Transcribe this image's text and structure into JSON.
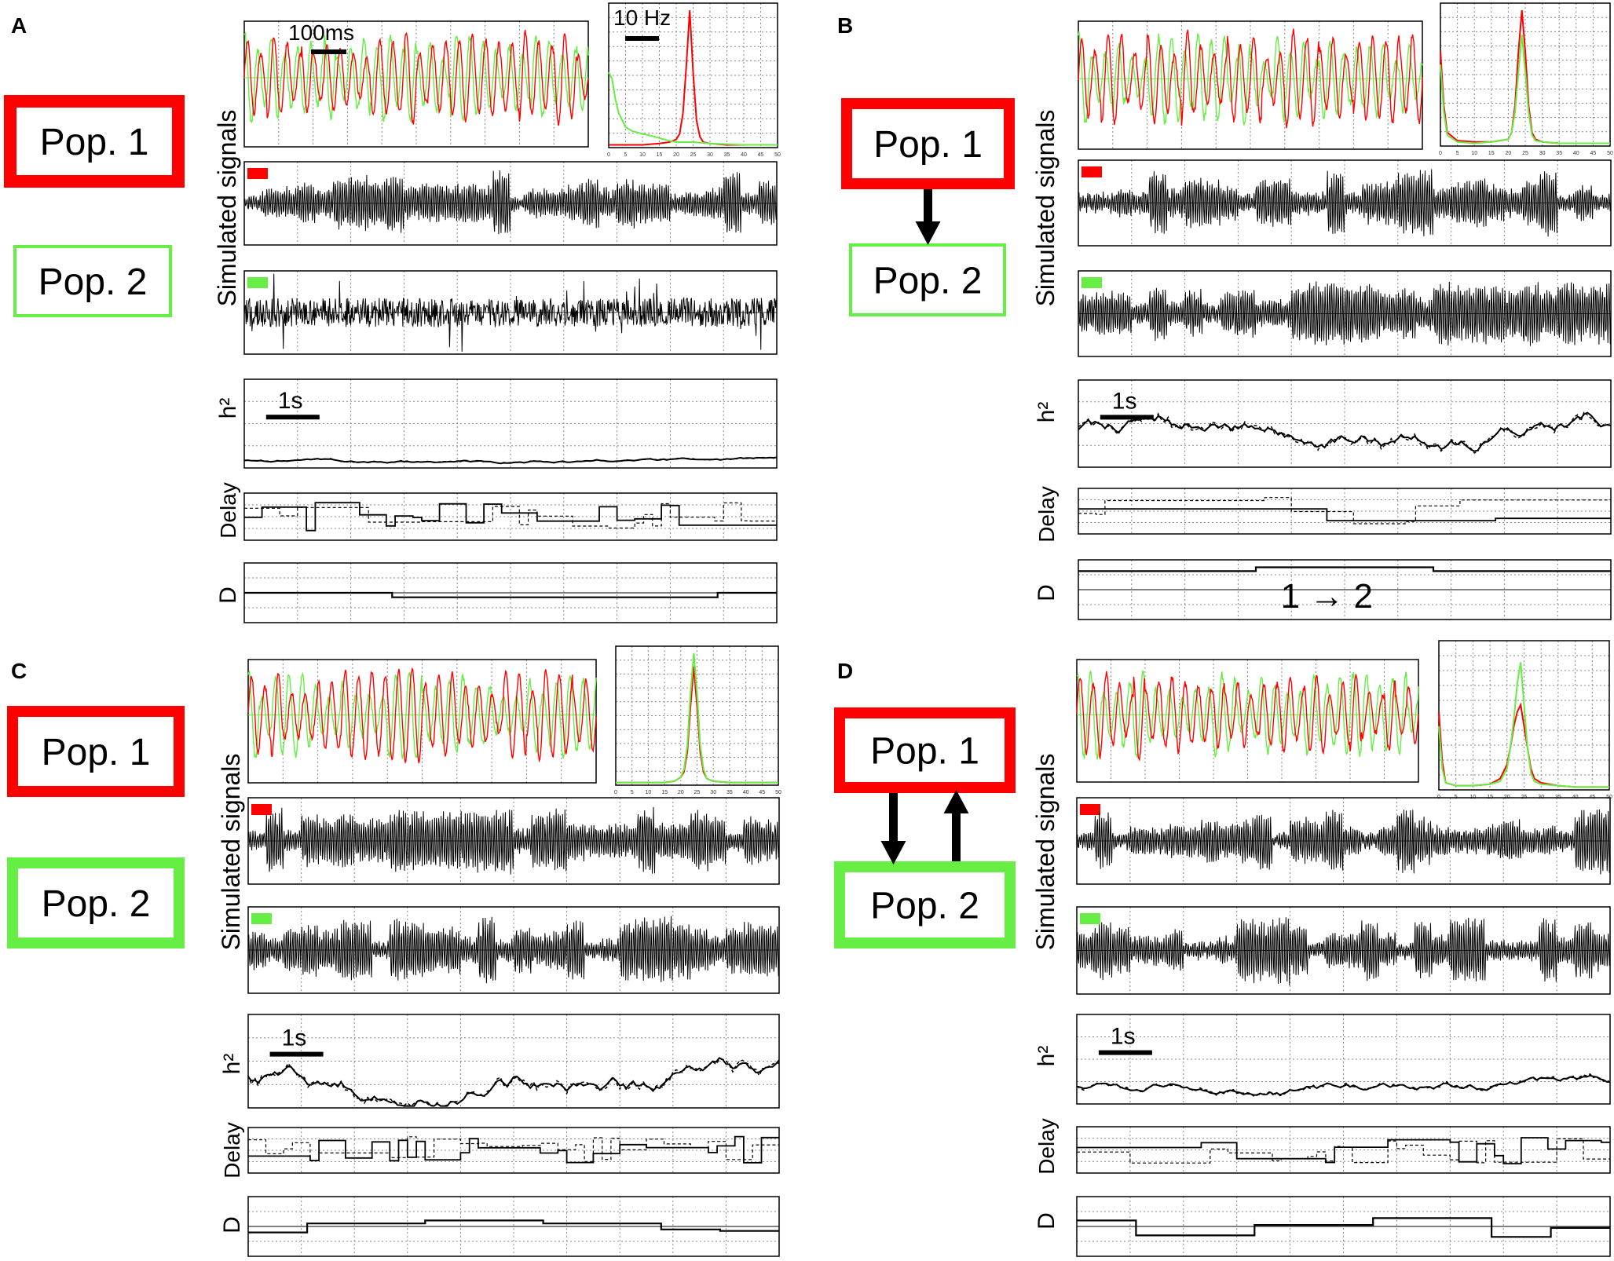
{
  "figure": {
    "panels": [
      {
        "letter": "A",
        "pop1_label": "Pop. 1",
        "pop2_label": "Pop. 2",
        "connection": "none",
        "direction_label": "",
        "ylabel_signals": "Simulated signals",
        "ylabel_h2": "h²",
        "ylabel_delay": "Delay",
        "ylabel_d": "D",
        "time_scale_label": "100ms",
        "freq_scale_label": "10 Hz",
        "seconds_scale_label": "1s"
      },
      {
        "letter": "B",
        "pop1_label": "Pop. 1",
        "pop2_label": "Pop. 2",
        "connection": "1to2",
        "direction_label": "1 → 2",
        "ylabel_signals": "Simulated signals",
        "ylabel_h2": "h²",
        "ylabel_delay": "Delay",
        "ylabel_d": "D",
        "time_scale_label": "",
        "freq_scale_label": "",
        "seconds_scale_label": "1s"
      },
      {
        "letter": "C",
        "pop1_label": "Pop. 1",
        "pop2_label": "Pop. 2",
        "connection": "none",
        "direction_label": "",
        "ylabel_signals": "Simulated signals",
        "ylabel_h2": "h²",
        "ylabel_delay": "Delay",
        "ylabel_d": "D",
        "time_scale_label": "",
        "freq_scale_label": "",
        "seconds_scale_label": "1s"
      },
      {
        "letter": "D",
        "pop1_label": "Pop. 1",
        "pop2_label": "Pop. 2",
        "connection": "bidirectional",
        "direction_label": "",
        "ylabel_signals": "Simulated signals",
        "ylabel_h2": "h²",
        "ylabel_delay": "Delay",
        "ylabel_d": "D",
        "time_scale_label": "",
        "freq_scale_label": "",
        "seconds_scale_label": "1s"
      }
    ],
    "colors": {
      "pop1": "#ff0000",
      "pop2": "#66ee44",
      "trace": "#000000",
      "grid": "#888888"
    }
  },
  "chart_data": [
    {
      "panel": "A",
      "type": "line",
      "subplot": "spectrum",
      "x_ticks": [
        "0",
        "5",
        "10",
        "15",
        "20",
        "25",
        "30",
        "35",
        "40",
        "45",
        "50"
      ],
      "xlim": [
        0,
        50
      ],
      "grid": true,
      "series": [
        {
          "color": "red",
          "x": [
            0,
            5,
            10,
            15,
            18,
            20,
            21,
            22,
            23,
            24,
            25,
            26,
            27,
            28,
            30,
            35,
            40,
            50
          ],
          "y": [
            0.02,
            0.02,
            0.02,
            0.03,
            0.04,
            0.06,
            0.1,
            0.25,
            0.6,
            1.0,
            0.55,
            0.2,
            0.08,
            0.04,
            0.03,
            0.02,
            0.02,
            0.02
          ]
        },
        {
          "color": "green",
          "x": [
            0,
            1,
            2,
            3,
            5,
            7,
            10,
            12,
            15,
            18,
            20,
            25,
            30,
            40,
            50
          ],
          "y": [
            0.55,
            0.5,
            0.35,
            0.25,
            0.15,
            0.12,
            0.1,
            0.09,
            0.07,
            0.05,
            0.04,
            0.04,
            0.03,
            0.02,
            0.02
          ]
        }
      ]
    },
    {
      "panel": "B",
      "type": "line",
      "subplot": "spectrum",
      "x_ticks": [
        "0",
        "5",
        "10",
        "15",
        "20",
        "25",
        "30",
        "35",
        "40",
        "45",
        "50"
      ],
      "xlim": [
        0,
        50
      ],
      "grid": true,
      "series": [
        {
          "color": "red",
          "x": [
            0,
            1,
            2,
            5,
            10,
            15,
            20,
            21,
            22,
            23,
            24,
            25,
            26,
            27,
            28,
            30,
            35,
            40,
            50
          ],
          "y": [
            0.7,
            0.3,
            0.1,
            0.04,
            0.03,
            0.03,
            0.05,
            0.1,
            0.3,
            0.7,
            1.0,
            0.7,
            0.3,
            0.1,
            0.05,
            0.03,
            0.02,
            0.02,
            0.02
          ]
        },
        {
          "color": "green",
          "x": [
            0,
            1,
            2,
            5,
            10,
            15,
            20,
            21,
            22,
            23,
            24,
            25,
            26,
            27,
            28,
            30,
            35,
            40,
            50
          ],
          "y": [
            0.6,
            0.25,
            0.08,
            0.03,
            0.02,
            0.03,
            0.05,
            0.1,
            0.25,
            0.55,
            0.82,
            0.55,
            0.25,
            0.08,
            0.04,
            0.03,
            0.02,
            0.02,
            0.02
          ]
        }
      ]
    },
    {
      "panel": "C",
      "type": "line",
      "subplot": "spectrum",
      "x_ticks": [
        "0",
        "5",
        "10",
        "15",
        "20",
        "25",
        "30",
        "35",
        "40",
        "45",
        "50"
      ],
      "xlim": [
        0,
        50
      ],
      "grid": true,
      "series": [
        {
          "color": "red",
          "x": [
            0,
            5,
            10,
            15,
            18,
            20,
            21,
            22,
            23,
            24,
            25,
            26,
            27,
            28,
            30,
            35,
            40,
            50
          ],
          "y": [
            0.02,
            0.02,
            0.02,
            0.02,
            0.03,
            0.06,
            0.1,
            0.25,
            0.6,
            0.9,
            0.6,
            0.25,
            0.1,
            0.05,
            0.03,
            0.02,
            0.02,
            0.02
          ]
        },
        {
          "color": "green",
          "x": [
            0,
            5,
            10,
            15,
            18,
            20,
            21,
            22,
            23,
            24,
            25,
            26,
            27,
            28,
            30,
            35,
            40,
            50
          ],
          "y": [
            0.02,
            0.02,
            0.02,
            0.02,
            0.03,
            0.06,
            0.12,
            0.3,
            0.7,
            1.0,
            0.7,
            0.3,
            0.12,
            0.05,
            0.03,
            0.02,
            0.02,
            0.02
          ]
        }
      ]
    },
    {
      "panel": "D",
      "type": "line",
      "subplot": "spectrum",
      "x_ticks": [
        "0",
        "5",
        "10",
        "15",
        "20",
        "25",
        "30",
        "35",
        "40",
        "45",
        "50"
      ],
      "xlim": [
        0,
        50
      ],
      "grid": true,
      "series": [
        {
          "color": "red",
          "x": [
            0,
            1,
            2,
            5,
            10,
            15,
            18,
            20,
            21,
            22,
            23,
            24,
            25,
            26,
            27,
            28,
            30,
            35,
            40,
            50
          ],
          "y": [
            0.55,
            0.2,
            0.05,
            0.03,
            0.03,
            0.04,
            0.08,
            0.18,
            0.3,
            0.45,
            0.55,
            0.6,
            0.45,
            0.3,
            0.15,
            0.08,
            0.05,
            0.03,
            0.02,
            0.02
          ]
        },
        {
          "color": "green",
          "x": [
            0,
            1,
            2,
            5,
            10,
            15,
            18,
            20,
            21,
            22,
            23,
            24,
            25,
            26,
            27,
            28,
            30,
            35,
            40,
            50
          ],
          "y": [
            0.45,
            0.15,
            0.05,
            0.03,
            0.03,
            0.04,
            0.06,
            0.15,
            0.3,
            0.5,
            0.75,
            0.9,
            0.6,
            0.3,
            0.12,
            0.06,
            0.04,
            0.03,
            0.02,
            0.02
          ]
        }
      ]
    }
  ]
}
